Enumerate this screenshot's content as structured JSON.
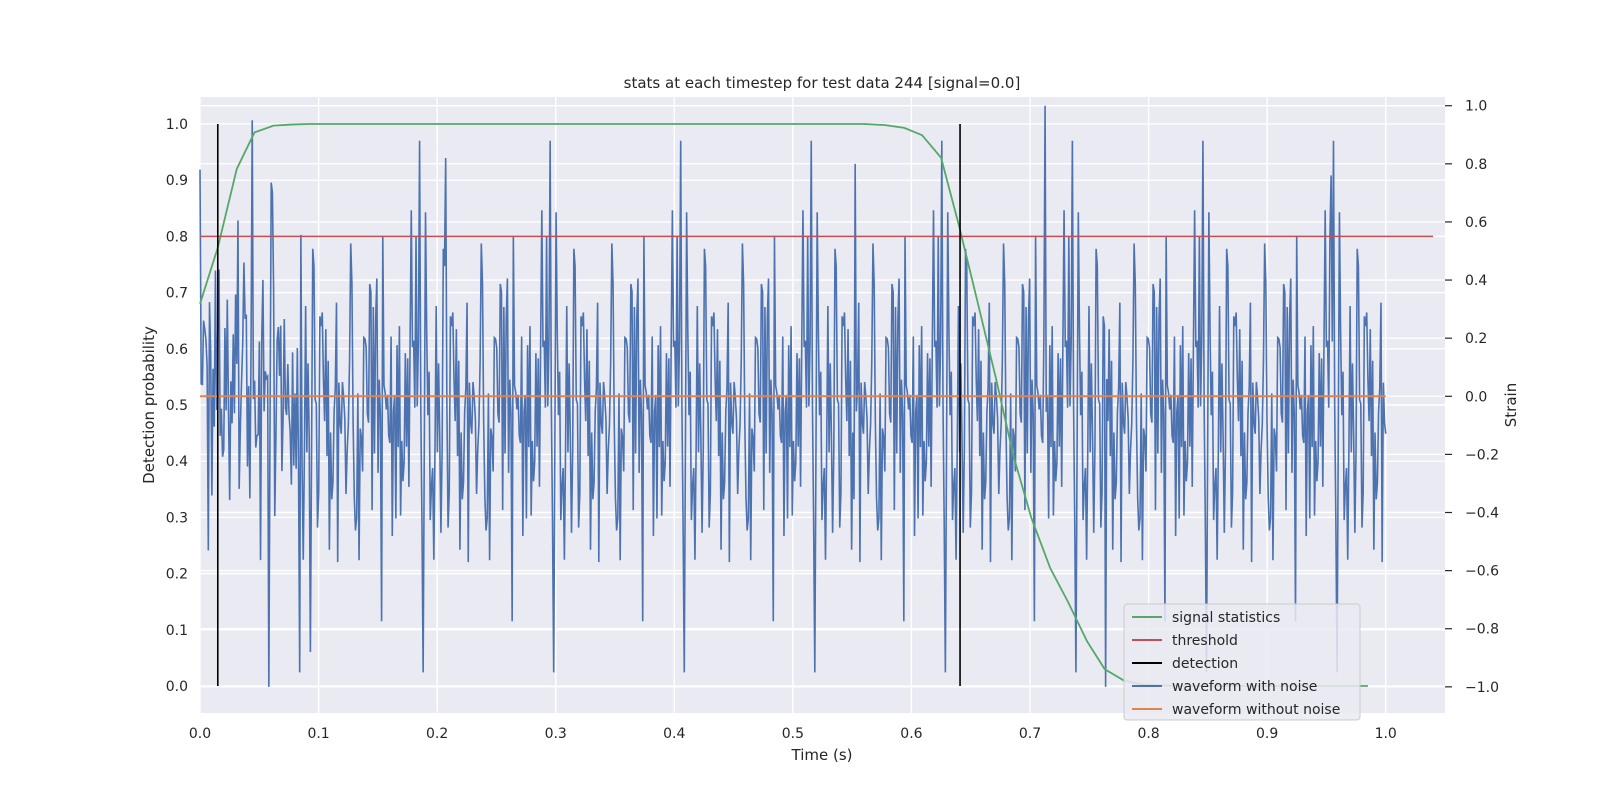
{
  "chart_data": {
    "type": "line",
    "title": "stats at each timestep for test data 244 [signal=0.0]",
    "xlabel": "Time (s)",
    "ylabel": "Detection probability",
    "y2label": "Strain",
    "xlim": [
      0.0,
      1.05
    ],
    "ylim": [
      -0.048,
      1.048
    ],
    "y2lim": [
      -1.09,
      1.03
    ],
    "xticks": [
      "0.0",
      "0.1",
      "0.2",
      "0.3",
      "0.4",
      "0.5",
      "0.6",
      "0.7",
      "0.8",
      "0.9",
      "1.0"
    ],
    "yticks": [
      "0.0",
      "0.1",
      "0.2",
      "0.3",
      "0.4",
      "0.5",
      "0.6",
      "0.7",
      "0.8",
      "0.9",
      "1.0"
    ],
    "y2ticks": [
      "−1.0",
      "−0.8",
      "−0.6",
      "−0.4",
      "−0.2",
      "0.0",
      "0.2",
      "0.4",
      "0.6",
      "0.8",
      "1.0"
    ],
    "grid": true,
    "legend_position": "lower right",
    "legend": [
      {
        "label": "signal statistics",
        "color": "#55a868"
      },
      {
        "label": "threshold",
        "color": "#c44e52"
      },
      {
        "label": "detection",
        "color": "#000000"
      },
      {
        "label": "waveform with noise",
        "color": "#4c72b0"
      },
      {
        "label": "waveform without noise",
        "color": "#dd8452"
      }
    ],
    "colors": {
      "signal": "#55a868",
      "threshold": "#c44e52",
      "detection": "#000000",
      "noisy": "#4c72b0",
      "clean": "#dd8452",
      "background": "#eaeaf2",
      "grid": "#ffffff"
    },
    "signal_statistics": {
      "x": [
        0.0,
        0.015,
        0.031,
        0.046,
        0.062,
        0.077,
        0.092,
        0.2,
        0.3,
        0.4,
        0.5,
        0.56,
        0.578,
        0.594,
        0.609,
        0.625,
        0.64,
        0.655,
        0.671,
        0.686,
        0.701,
        0.717,
        0.732,
        0.748,
        0.763,
        0.779,
        0.794,
        0.81,
        0.825,
        0.84,
        0.9,
        0.985
      ],
      "y": [
        0.68,
        0.78,
        0.92,
        0.985,
        0.997,
        0.999,
        1.0,
        1.0,
        1.0,
        1.0,
        1.0,
        1.0,
        0.998,
        0.993,
        0.98,
        0.94,
        0.82,
        0.69,
        0.55,
        0.41,
        0.3,
        0.21,
        0.15,
        0.08,
        0.03,
        0.01,
        0.003,
        0.001,
        0.0,
        0.0,
        0.0,
        0.0
      ]
    },
    "threshold": {
      "value": 0.8,
      "x_range": [
        0.0,
        1.04
      ]
    },
    "detections": {
      "x": [
        0.015,
        0.641
      ],
      "y_range": [
        0.0,
        1.0
      ]
    },
    "waveform_with_noise": {
      "x_range": [
        0.0,
        1.0
      ],
      "n_points": 1000,
      "seed": 244,
      "std": 0.33,
      "spikes": [
        {
          "x": 0.0,
          "strain": 0.78
        },
        {
          "x": 0.058,
          "strain": -1.0
        },
        {
          "x": 0.061,
          "strain": 0.7
        },
        {
          "x": 0.093,
          "strain": -0.88
        },
        {
          "x": 0.207,
          "strain": 0.82
        },
        {
          "x": 0.553,
          "strain": 0.8
        },
        {
          "x": 0.713,
          "strain": 1.0
        },
        {
          "x": 0.764,
          "strain": -1.0
        },
        {
          "x": 0.954,
          "strain": 0.76
        }
      ]
    },
    "waveform_without_noise": {
      "x": [
        0.0,
        1.0
      ],
      "strain": [
        0.0,
        0.0
      ]
    }
  }
}
